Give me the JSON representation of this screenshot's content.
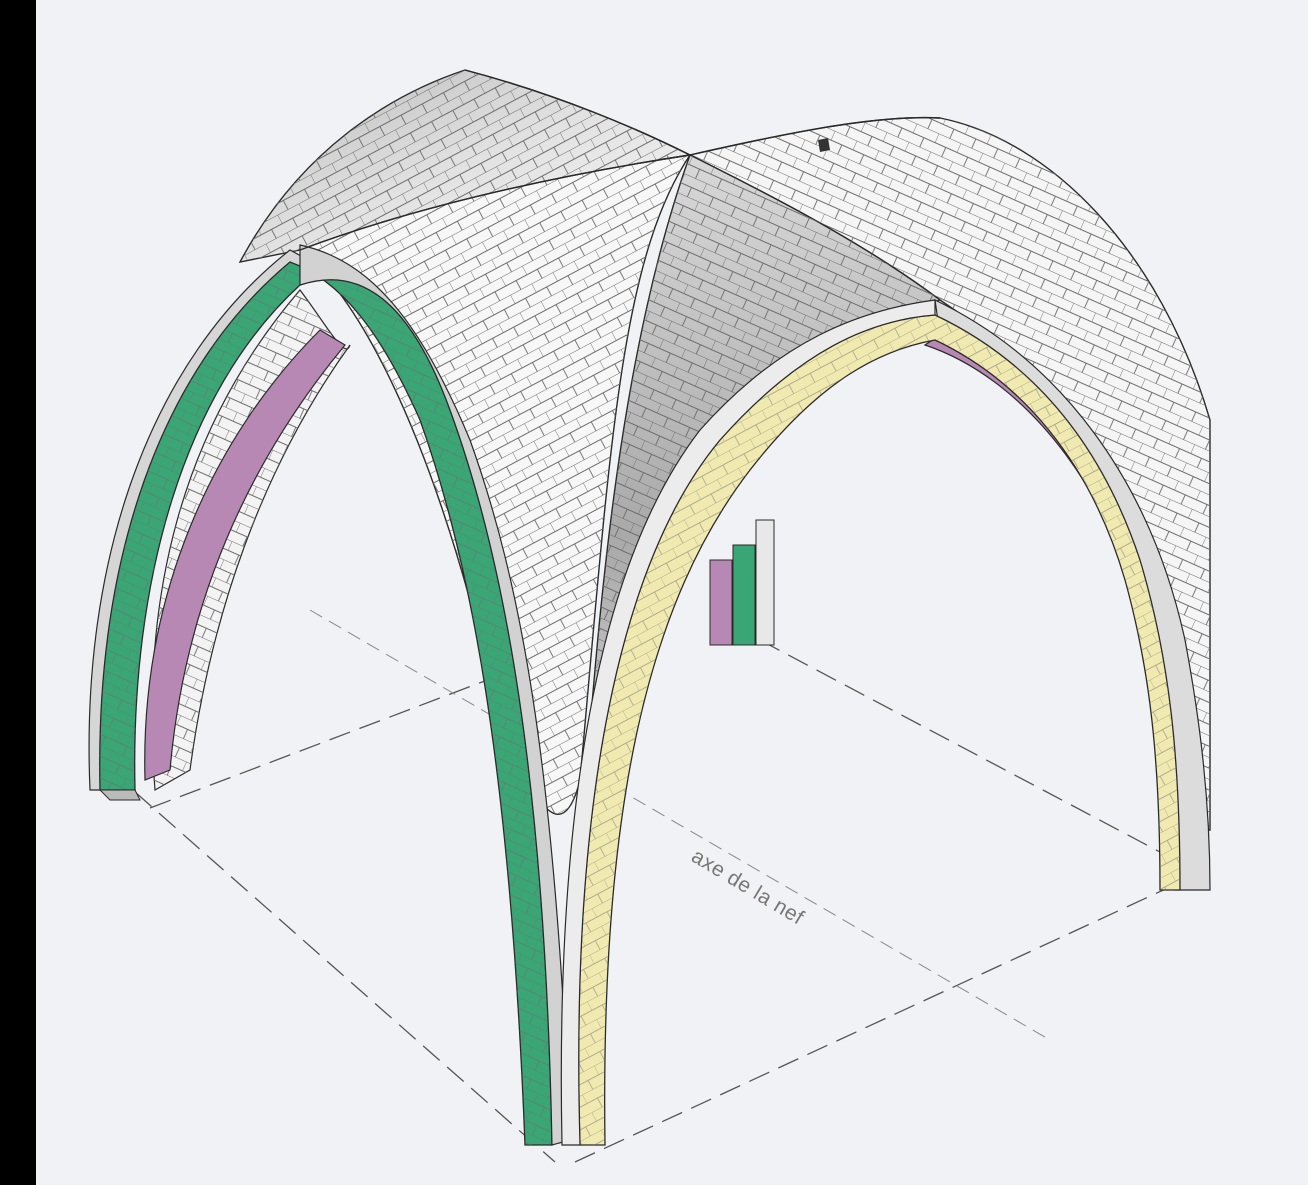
{
  "diagram": {
    "axis_label": "axe de la nef"
  },
  "colors": {
    "paper": "#f1f2f6",
    "ink": "#2a2a2a",
    "green_rib": "#3aa676",
    "purple_rib": "#b888b4",
    "yellow_rib": "#f1eab0",
    "stone_white": "#f7f7f7",
    "stone_shade": "#c9c9c9",
    "dash": "#555555"
  }
}
